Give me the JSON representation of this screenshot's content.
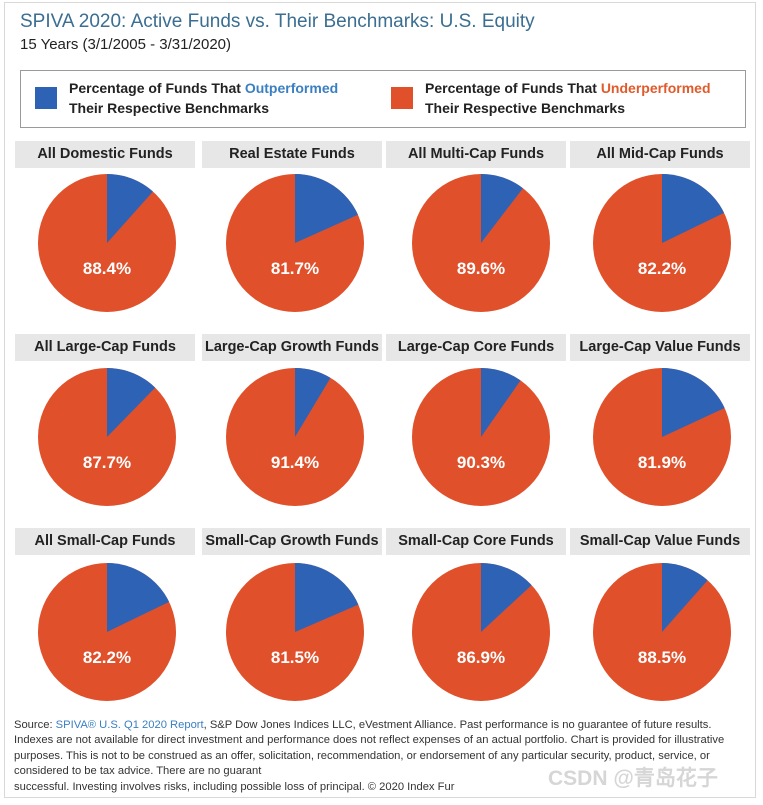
{
  "header": {
    "title": "SPIVA 2020: Active Funds vs. Their Benchmarks: U.S. Equity",
    "subtitle": "15 Years (3/1/2005 - 3/31/2020)"
  },
  "legend": {
    "outperformed": {
      "prefix": "Percentage of Funds That ",
      "highlight": "Outperformed",
      "line2": "Their Respective Benchmarks",
      "color": "#2e62b5"
    },
    "underperformed": {
      "prefix": "Percentage of Funds That ",
      "highlight": "Underperformed",
      "line2": "Their Respective Benchmarks",
      "color": "#e0502a"
    }
  },
  "chart_data": {
    "type": "pie",
    "title": "SPIVA 2020: Active Funds vs. Their Benchmarks: U.S. Equity",
    "series_names": [
      "Outperformed",
      "Underperformed"
    ],
    "colors": {
      "outperformed": "#2e62b5",
      "underperformed": "#e0502a"
    },
    "charts": [
      {
        "category": "All Domestic Funds",
        "underperformed": 88.4,
        "outperformed": 11.6,
        "label": "88.4%"
      },
      {
        "category": "Real Estate Funds",
        "underperformed": 81.7,
        "outperformed": 18.3,
        "label": "81.7%"
      },
      {
        "category": "All Multi-Cap Funds",
        "underperformed": 89.6,
        "outperformed": 10.4,
        "label": "89.6%"
      },
      {
        "category": "All Mid-Cap Funds",
        "underperformed": 82.2,
        "outperformed": 17.8,
        "label": "82.2%"
      },
      {
        "category": "All Large-Cap Funds",
        "underperformed": 87.7,
        "outperformed": 12.3,
        "label": "87.7%"
      },
      {
        "category": "Large-Cap Growth Funds",
        "underperformed": 91.4,
        "outperformed": 8.6,
        "label": "91.4%"
      },
      {
        "category": "Large-Cap Core Funds",
        "underperformed": 90.3,
        "outperformed": 9.7,
        "label": "90.3%"
      },
      {
        "category": "Large-Cap Value Funds",
        "underperformed": 81.9,
        "outperformed": 18.1,
        "label": "81.9%"
      },
      {
        "category": "All Small-Cap Funds",
        "underperformed": 82.2,
        "outperformed": 17.8,
        "label": "82.2%"
      },
      {
        "category": "Small-Cap Growth Funds",
        "underperformed": 81.5,
        "outperformed": 18.5,
        "label": "81.5%"
      },
      {
        "category": "Small-Cap Core Funds",
        "underperformed": 86.9,
        "outperformed": 13.1,
        "label": "86.9%"
      },
      {
        "category": "Small-Cap Value Funds",
        "underperformed": 88.5,
        "outperformed": 11.5,
        "label": "88.5%"
      }
    ]
  },
  "footer": {
    "source_prefix": "Source: ",
    "source_link": "SPIVA® U.S. Q1 2020 Report",
    "source_rest": ", S&P Dow Jones Indices LLC, eVestment Alliance. Past performance is no guarantee of future results. Indexes are not available for direct investment and performance does not reflect expenses of an actual portfolio. Chart is provided for illustrative purposes. This is not to be construed as an offer, solicitation, recommendation, or endorsement of any particular security, product, service, or considered to be tax advice. There are no guarant",
    "source_tail": "successful. Investing involves risks, including possible loss of principal. © 2020 Index Fur"
  },
  "watermark": "CSDN @青岛花子"
}
